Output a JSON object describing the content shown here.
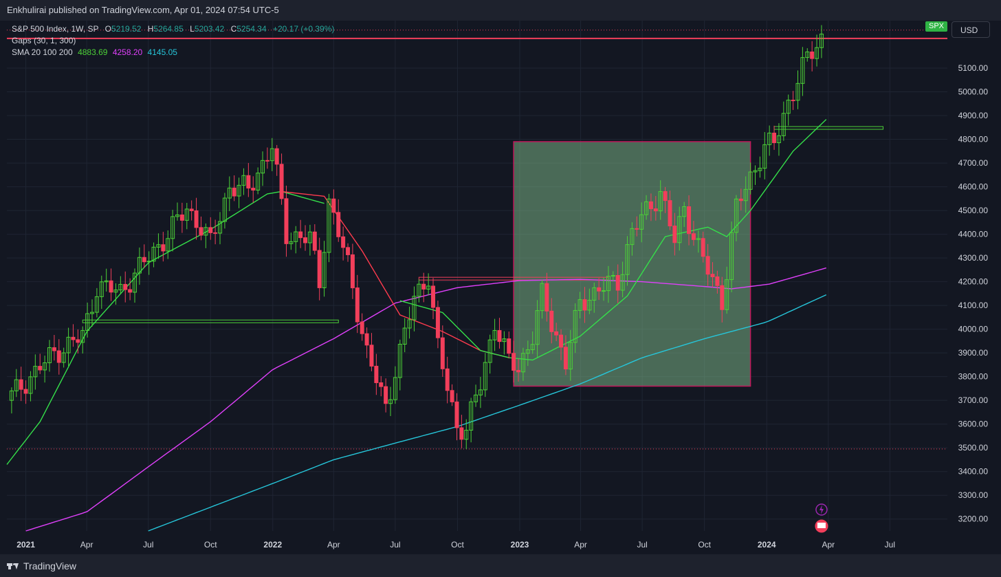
{
  "header": {
    "publisher_line": "Enkhulirai published on TradingView.com, Apr 01, 2024 07:54 UTC-5"
  },
  "footer": {
    "brand": "TradingView"
  },
  "legend": {
    "symbol": "S&P 500 Index, 1W, SP",
    "open_label": "O",
    "open": "5219.52",
    "high_label": "H",
    "high": "5264.85",
    "low_label": "L",
    "low": "5203.42",
    "close_label": "C",
    "close": "5254.34",
    "change": "+20.17 (+0.39%)",
    "gaps": "Gaps (30, 1, 300)",
    "sma_label": "SMA 20 100 200",
    "sma20": "4883.69",
    "sma100": "4258.20",
    "sma200": "4145.05"
  },
  "price_axis": {
    "currency": "USD",
    "symbol_badge": "SPX"
  },
  "colors": {
    "background": "#131722",
    "grid": "#1f2533",
    "up": "#4cd137",
    "down": "#f23f5b",
    "sma20": "#35e04a",
    "sma100": "#e040fb",
    "sma200": "#26c6da",
    "sma_red": "#ff3b4e",
    "box_fill": "rgba(130,190,140,0.5)",
    "box_border": "#c2185b",
    "level_line": "#f23f5b"
  },
  "chart_data": {
    "type": "candlestick",
    "interval": "1W",
    "y_ticks": [
      3200,
      3300,
      3400,
      3500,
      3600,
      3700,
      3800,
      3900,
      4000,
      4100,
      4200,
      4300,
      4400,
      4500,
      4600,
      4700,
      4800,
      4900,
      5000,
      5100
    ],
    "x_ticks": [
      {
        "label": "2021",
        "bold": true,
        "date": "2021-01-01"
      },
      {
        "label": "Apr",
        "bold": false,
        "date": "2021-04-01"
      },
      {
        "label": "Jul",
        "bold": false,
        "date": "2021-07-01"
      },
      {
        "label": "Oct",
        "bold": false,
        "date": "2021-10-01"
      },
      {
        "label": "2022",
        "bold": true,
        "date": "2022-01-01"
      },
      {
        "label": "Apr",
        "bold": false,
        "date": "2022-04-01"
      },
      {
        "label": "Jul",
        "bold": false,
        "date": "2022-07-01"
      },
      {
        "label": "Oct",
        "bold": false,
        "date": "2022-10-01"
      },
      {
        "label": "2023",
        "bold": true,
        "date": "2023-01-01"
      },
      {
        "label": "Apr",
        "bold": false,
        "date": "2023-04-01"
      },
      {
        "label": "Jul",
        "bold": false,
        "date": "2023-07-01"
      },
      {
        "label": "Oct",
        "bold": false,
        "date": "2023-10-01"
      },
      {
        "label": "2024",
        "bold": true,
        "date": "2024-01-01"
      },
      {
        "label": "Apr",
        "bold": false,
        "date": "2024-04-01"
      },
      {
        "label": "Jul",
        "bold": false,
        "date": "2024-07-01"
      }
    ],
    "y_range": [
      3150,
      5300
    ],
    "x_range": [
      "2020-12-04",
      "2024-09-24"
    ],
    "price_anchors": [
      [
        "2020-12-04",
        3700
      ],
      [
        "2021-01-08",
        3800
      ],
      [
        "2021-02-12",
        3900
      ],
      [
        "2021-03-26",
        3970
      ],
      [
        "2021-04-16",
        4180
      ],
      [
        "2021-05-21",
        4160
      ],
      [
        "2021-06-25",
        4280
      ],
      [
        "2021-07-30",
        4400
      ],
      [
        "2021-08-27",
        4510
      ],
      [
        "2021-09-17",
        4430
      ],
      [
        "2021-10-01",
        4360
      ],
      [
        "2021-10-29",
        4600
      ],
      [
        "2021-11-26",
        4590
      ],
      [
        "2021-12-31",
        4770
      ],
      [
        "2022-01-21",
        4400
      ],
      [
        "2022-02-25",
        4380
      ],
      [
        "2022-03-11",
        4200
      ],
      [
        "2022-03-25",
        4540
      ],
      [
        "2022-04-22",
        4270
      ],
      [
        "2022-05-20",
        3900
      ],
      [
        "2022-06-17",
        3670
      ],
      [
        "2022-07-01",
        3830
      ],
      [
        "2022-07-29",
        4130
      ],
      [
        "2022-08-19",
        4230
      ],
      [
        "2022-09-02",
        3920
      ],
      [
        "2022-09-30",
        3590
      ],
      [
        "2022-10-14",
        3580
      ],
      [
        "2022-11-04",
        3770
      ],
      [
        "2022-11-25",
        4030
      ],
      [
        "2022-12-16",
        3860
      ],
      [
        "2022-12-30",
        3840
      ],
      [
        "2023-01-20",
        3970
      ],
      [
        "2023-02-03",
        4140
      ],
      [
        "2023-03-10",
        3860
      ],
      [
        "2023-03-31",
        4110
      ],
      [
        "2023-04-28",
        4170
      ],
      [
        "2023-05-26",
        4200
      ],
      [
        "2023-06-16",
        4410
      ],
      [
        "2023-07-28",
        4580
      ],
      [
        "2023-08-18",
        4370
      ],
      [
        "2023-09-01",
        4510
      ],
      [
        "2023-09-29",
        4290
      ],
      [
        "2023-10-27",
        4120
      ],
      [
        "2023-11-17",
        4510
      ],
      [
        "2023-12-29",
        4770
      ],
      [
        "2024-01-12",
        4780
      ],
      [
        "2024-02-02",
        4960
      ],
      [
        "2024-03-01",
        5140
      ],
      [
        "2024-03-28",
        5254
      ]
    ],
    "sma20_anchors": [
      [
        "2020-12-04",
        3430
      ],
      [
        "2021-01-22",
        3610
      ],
      [
        "2021-04-01",
        3990
      ],
      [
        "2021-07-01",
        4280
      ],
      [
        "2021-10-01",
        4420
      ],
      [
        "2021-12-24",
        4570
      ],
      [
        "2022-01-14",
        4580
      ],
      [
        "2022-03-18",
        4530
      ]
    ],
    "sma_red_anchors": [
      [
        "2022-01-14",
        4580
      ],
      [
        "2022-03-18",
        4560
      ],
      [
        "2022-05-13",
        4330
      ],
      [
        "2022-07-08",
        4060
      ],
      [
        "2022-09-09",
        3990
      ],
      [
        "2022-11-04",
        3910
      ],
      [
        "2022-12-16",
        3880
      ]
    ],
    "sma20b_anchors": [
      [
        "2022-07-08",
        4120
      ],
      [
        "2022-09-09",
        4070
      ],
      [
        "2022-11-04",
        3910
      ],
      [
        "2022-12-16",
        3880
      ],
      [
        "2023-01-20",
        3870
      ],
      [
        "2023-03-31",
        3970
      ],
      [
        "2023-06-09",
        4140
      ],
      [
        "2023-08-04",
        4390
      ],
      [
        "2023-10-06",
        4430
      ],
      [
        "2023-11-03",
        4390
      ],
      [
        "2023-12-08",
        4500
      ],
      [
        "2024-02-09",
        4750
      ],
      [
        "2024-03-29",
        4884
      ]
    ],
    "sma100_anchors": [
      [
        "2021-01-01",
        3150
      ],
      [
        "2021-04-01",
        3230
      ],
      [
        "2021-07-01",
        3420
      ],
      [
        "2021-10-01",
        3610
      ],
      [
        "2022-01-01",
        3830
      ],
      [
        "2022-04-01",
        3960
      ],
      [
        "2022-07-01",
        4110
      ],
      [
        "2022-10-01",
        4175
      ],
      [
        "2023-01-01",
        4205
      ],
      [
        "2023-04-01",
        4210
      ],
      [
        "2023-07-01",
        4200
      ],
      [
        "2023-10-01",
        4180
      ],
      [
        "2023-11-10",
        4170
      ],
      [
        "2024-01-05",
        4190
      ],
      [
        "2024-03-29",
        4258
      ]
    ],
    "sma200_anchors": [
      [
        "2021-07-01",
        3150
      ],
      [
        "2021-10-01",
        3250
      ],
      [
        "2022-01-01",
        3350
      ],
      [
        "2022-04-01",
        3450
      ],
      [
        "2022-07-01",
        3520
      ],
      [
        "2022-10-01",
        3590
      ],
      [
        "2023-01-01",
        3680
      ],
      [
        "2023-04-01",
        3770
      ],
      [
        "2023-07-01",
        3880
      ],
      [
        "2023-10-01",
        3960
      ],
      [
        "2024-01-01",
        4030
      ],
      [
        "2024-03-29",
        4145
      ]
    ],
    "zones": [
      {
        "date_from": "2022-12-23",
        "date_to": "2023-12-08",
        "low": 3760,
        "high": 4790
      }
    ],
    "gap_lines": [
      {
        "date_from": "2021-03-26",
        "date_to": "2022-04-08",
        "price": 4030
      },
      {
        "date_from": "2022-08-05",
        "date_to": "2023-05-12",
        "price": 4210
      },
      {
        "date_from": "2024-01-12",
        "date_to": "2024-06-21",
        "price": 4845
      }
    ],
    "levels": [
      {
        "price": 5225,
        "style": "solid"
      },
      {
        "price": 5260,
        "style": "dotted"
      },
      {
        "price": 3495,
        "style": "dotted"
      }
    ]
  }
}
